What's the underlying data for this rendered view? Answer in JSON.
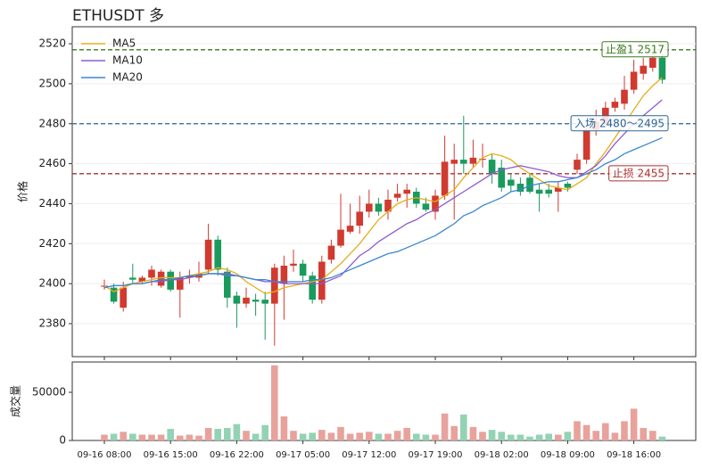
{
  "chart_data": {
    "type": "candlestick",
    "title": "ETHUSDT  多",
    "ylabel": "价格",
    "categories": [
      "09-16 08:00",
      null,
      null,
      null,
      null,
      null,
      null,
      "09-16 15:00",
      null,
      null,
      null,
      null,
      null,
      null,
      "09-16 22:00",
      null,
      null,
      null,
      null,
      null,
      null,
      "09-17 05:00",
      null,
      null,
      null,
      null,
      null,
      null,
      "09-17 12:00",
      null,
      null,
      null,
      null,
      null,
      null,
      "09-17 19:00",
      null,
      null,
      null,
      null,
      null,
      null,
      "09-18 02:00",
      null,
      null,
      null,
      null,
      null,
      null,
      "09-18 09:00",
      null,
      null,
      null,
      null,
      null,
      null,
      "09-18 16:00",
      null,
      null,
      null
    ],
    "open": [
      2398.5,
      2398,
      2388,
      2403,
      2401,
      2403,
      2399,
      2406,
      2397,
      2403,
      2403,
      2407,
      2422,
      2406,
      2394,
      2390,
      2392,
      2392,
      2390,
      2400,
      2409,
      2410,
      2404,
      2392,
      2412,
      2419,
      2426,
      2429,
      2436,
      2440,
      2436,
      2443,
      2445,
      2446,
      2440,
      2436,
      2444,
      2460,
      2462,
      2460,
      2462,
      2462,
      2458,
      2452,
      2450,
      2453,
      2447,
      2447,
      2446,
      2450,
      2457,
      2462,
      2477,
      2480,
      2488,
      2490,
      2497,
      2505,
      2508,
      2513
    ],
    "high": [
      2402,
      2400,
      2401,
      2410,
      2404,
      2409,
      2407,
      2407,
      2406,
      2407,
      2411,
      2430,
      2424,
      2408,
      2396,
      2398,
      2395,
      2396,
      2410,
      2414,
      2417,
      2412,
      2406,
      2414,
      2422,
      2445,
      2440,
      2444,
      2447,
      2443,
      2447,
      2450,
      2450,
      2448,
      2443,
      2447,
      2474,
      2470,
      2484,
      2472,
      2470,
      2465,
      2462,
      2455,
      2453,
      2455,
      2450,
      2450,
      2451,
      2451,
      2465,
      2482,
      2487,
      2491,
      2493,
      2504,
      2512,
      2513,
      2515,
      2515
    ],
    "low": [
      2397,
      2390,
      2386,
      2400,
      2400,
      2399,
      2398,
      2396,
      2383,
      2400,
      2401,
      2405,
      2404,
      2388,
      2378,
      2388,
      2384,
      2372,
      2369,
      2382,
      2406,
      2401,
      2390,
      2390,
      2410,
      2418,
      2425,
      2425,
      2433,
      2434,
      2432,
      2441,
      2438,
      2438,
      2436,
      2432,
      2442,
      2432,
      2455,
      2458,
      2458,
      2450,
      2446,
      2446,
      2444,
      2445,
      2436,
      2443,
      2436,
      2446,
      2455,
      2460,
      2474,
      2478,
      2486,
      2487,
      2495,
      2502,
      2506,
      2500
    ],
    "close": [
      2399,
      2391,
      2398,
      2402,
      2403,
      2407,
      2406,
      2397,
      2403,
      2404,
      2405,
      2422,
      2407,
      2393,
      2390,
      2393,
      2391,
      2390,
      2408,
      2409,
      2410,
      2404,
      2392,
      2411,
      2419,
      2427,
      2429,
      2436,
      2440,
      2436,
      2442,
      2445,
      2447,
      2440,
      2437,
      2444,
      2461,
      2462,
      2460,
      2463,
      2462.5,
      2455,
      2448,
      2449,
      2446,
      2446,
      2445,
      2445,
      2448,
      2448,
      2462,
      2477,
      2481,
      2488,
      2491,
      2497,
      2506,
      2509,
      2513,
      2502
    ],
    "up_color": "#d03a2f",
    "down_color": "#1a9a5c",
    "ylim": [
      2363.5,
      2528.5
    ],
    "yticks": [
      2380,
      2400,
      2420,
      2440,
      2460,
      2480,
      2500,
      2520
    ],
    "grid": true,
    "legend": "upper left",
    "series": [
      {
        "name": "MA5",
        "color": "#e6ad1a",
        "values": [
          2399,
          2396,
          2398,
          2400,
          2401,
          2402,
          2403,
          2403,
          2403,
          2404,
          2405,
          2406,
          2408,
          2407,
          2405,
          2401,
          2398,
          2395,
          2396,
          2398,
          2399,
          2400,
          2401,
          2402,
          2406,
          2410,
          2415,
          2420,
          2426,
          2432,
          2436,
          2440,
          2442,
          2443,
          2442,
          2441,
          2444,
          2447,
          2453,
          2458,
          2463,
          2465,
          2464,
          2462,
          2458,
          2455,
          2452,
          2449,
          2448,
          2447,
          2450,
          2453,
          2460,
          2466,
          2473,
          2480,
          2487,
          2494,
          2499,
          2503
        ]
      },
      {
        "name": "MA10",
        "color": "#8e5bd0",
        "values": [
          2398,
          2399,
          2399,
          2400,
          2400,
          2401,
          2401,
          2402,
          2402,
          2403,
          2404,
          2405,
          2405,
          2405,
          2404,
          2403,
          2402,
          2401,
          2401,
          2400,
          2400,
          2400,
          2400,
          2400,
          2402,
          2404,
          2409,
          2414,
          2417,
          2421,
          2424,
          2427,
          2430,
          2432,
          2435,
          2437,
          2440,
          2443,
          2446,
          2449,
          2452,
          2455,
          2457,
          2458,
          2459,
          2458,
          2457,
          2456,
          2454,
          2453,
          2453,
          2456,
          2459,
          2464,
          2470,
          2475,
          2480,
          2484,
          2488,
          2492
        ]
      },
      {
        "name": "MA20",
        "color": "#3b86d0",
        "values": [
          2398,
          2399,
          2399,
          2400,
          2400,
          2401,
          2402,
          2402,
          2403,
          2404,
          2404,
          2405,
          2405,
          2404,
          2404,
          2403,
          2402,
          2402,
          2401,
          2401,
          2401,
          2401,
          2402,
          2402,
          2403,
          2405,
          2407,
          2409,
          2411,
          2413,
          2415,
          2416,
          2418,
          2420,
          2422,
          2424,
          2427,
          2430,
          2434,
          2436,
          2439,
          2441,
          2443,
          2446,
          2447,
          2449,
          2450,
          2451,
          2451,
          2452,
          2453,
          2455,
          2457,
          2460,
          2462,
          2465,
          2467,
          2469,
          2471,
          2473
        ]
      }
    ],
    "hlines": [
      {
        "label": "止盈1 2517",
        "value": 2517,
        "color": "#3a7a1e"
      },
      {
        "label": "入场 2480～2495",
        "value": 2480,
        "color": "#2a6496"
      },
      {
        "label": "止损 2455",
        "value": 2455,
        "color": "#a83232"
      }
    ],
    "volume": {
      "ylabel": "成交量",
      "values": [
        6000,
        7000,
        9000,
        7000,
        6000,
        6000,
        6000,
        12000,
        5000,
        6000,
        5000,
        13000,
        12000,
        13000,
        17000,
        10000,
        7000,
        16000,
        78000,
        25000,
        10000,
        7000,
        8000,
        11000,
        8000,
        14000,
        7000,
        8000,
        9000,
        7000,
        7000,
        10000,
        13000,
        7000,
        6000,
        6000,
        28000,
        15000,
        27000,
        14000,
        9000,
        11000,
        9000,
        6000,
        6000,
        4000,
        6000,
        7000,
        6000,
        9000,
        20000,
        16000,
        10000,
        18000,
        8000,
        20000,
        33000,
        13000,
        10000,
        4000
      ],
      "ylim": [
        0,
        81500
      ],
      "yticks": [
        0,
        50000
      ],
      "up_color": "#e8a29c",
      "down_color": "#93d3b4"
    }
  }
}
